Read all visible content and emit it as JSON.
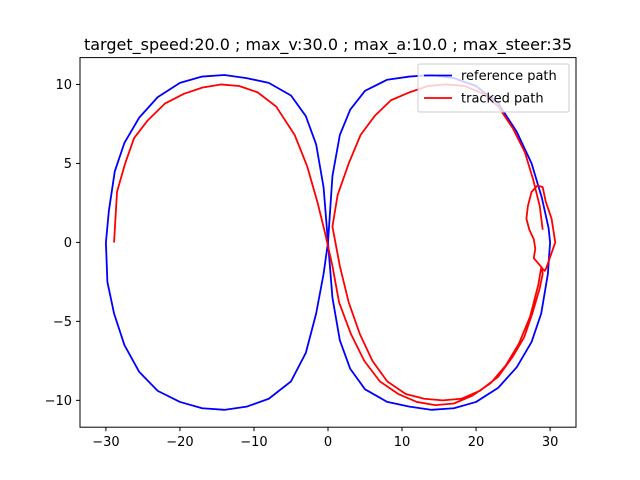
{
  "chart_data": {
    "type": "line",
    "title": "target_speed:20.0 ; max_v:30.0 ; max_a:10.0 ; max_steer:35",
    "xlabel": "",
    "ylabel": "",
    "xlim": [
      -33.5,
      33.5
    ],
    "ylim": [
      -11.7,
      11.7
    ],
    "xticks": [
      -30,
      -20,
      -10,
      0,
      10,
      20,
      30
    ],
    "yticks": [
      -10,
      -5,
      0,
      5,
      10
    ],
    "xtick_labels": [
      "−30",
      "−20",
      "−10",
      "0",
      "10",
      "20",
      "30"
    ],
    "ytick_labels": [
      "−10",
      "−5",
      "0",
      "5",
      "10"
    ],
    "grid": false,
    "legend_position": "top-right",
    "series": [
      {
        "name": "reference path",
        "color": "#0000ff",
        "points": [
          [
            0.0,
            0.0
          ],
          [
            0.6,
            4.2
          ],
          [
            1.6,
            6.8
          ],
          [
            3.0,
            8.4
          ],
          [
            5.0,
            9.6
          ],
          [
            8.0,
            10.3
          ],
          [
            11.0,
            10.5
          ],
          [
            14.0,
            10.6
          ],
          [
            17.0,
            10.4
          ],
          [
            20.0,
            9.9
          ],
          [
            23.0,
            8.8
          ],
          [
            25.5,
            7.0
          ],
          [
            27.5,
            5.0
          ],
          [
            28.9,
            2.8
          ],
          [
            29.8,
            0.9
          ],
          [
            30.0,
            0.0
          ],
          [
            29.7,
            -2.0
          ],
          [
            28.8,
            -4.5
          ],
          [
            27.5,
            -6.3
          ],
          [
            25.5,
            -7.9
          ],
          [
            23.0,
            -9.2
          ],
          [
            20.0,
            -10.1
          ],
          [
            17.0,
            -10.5
          ],
          [
            14.0,
            -10.6
          ],
          [
            11.0,
            -10.4
          ],
          [
            8.0,
            -10.1
          ],
          [
            5.0,
            -9.3
          ],
          [
            3.0,
            -8.0
          ],
          [
            1.6,
            -6.2
          ],
          [
            0.6,
            -3.5
          ],
          [
            0.0,
            0.0
          ],
          [
            -0.6,
            3.5
          ],
          [
            -1.6,
            6.2
          ],
          [
            -3.0,
            8.0
          ],
          [
            -5.0,
            9.3
          ],
          [
            -8.0,
            10.1
          ],
          [
            -11.0,
            10.4
          ],
          [
            -14.0,
            10.6
          ],
          [
            -17.0,
            10.5
          ],
          [
            -20.0,
            10.1
          ],
          [
            -23.0,
            9.2
          ],
          [
            -25.5,
            7.9
          ],
          [
            -27.5,
            6.3
          ],
          [
            -28.8,
            4.5
          ],
          [
            -29.6,
            2.0
          ],
          [
            -30.0,
            0.0
          ],
          [
            -29.8,
            -2.5
          ],
          [
            -28.9,
            -4.5
          ],
          [
            -27.5,
            -6.5
          ],
          [
            -25.5,
            -8.2
          ],
          [
            -23.0,
            -9.4
          ],
          [
            -20.0,
            -10.1
          ],
          [
            -17.0,
            -10.5
          ],
          [
            -14.0,
            -10.6
          ],
          [
            -11.0,
            -10.4
          ],
          [
            -8.0,
            -9.9
          ],
          [
            -5.0,
            -8.8
          ],
          [
            -3.0,
            -7.0
          ],
          [
            -1.6,
            -4.5
          ],
          [
            -0.6,
            -2.0
          ],
          [
            0.0,
            0.0
          ]
        ]
      },
      {
        "name": "tracked path",
        "color": "#ff0000",
        "points": [
          [
            -28.9,
            0.0
          ],
          [
            -28.5,
            3.2
          ],
          [
            -27.4,
            5.0
          ],
          [
            -26.2,
            6.6
          ],
          [
            -24.4,
            7.7
          ],
          [
            -22.0,
            8.8
          ],
          [
            -19.5,
            9.4
          ],
          [
            -17.0,
            9.8
          ],
          [
            -14.5,
            10.0
          ],
          [
            -12.0,
            9.9
          ],
          [
            -9.5,
            9.5
          ],
          [
            -7.0,
            8.6
          ],
          [
            -4.5,
            6.8
          ],
          [
            -2.8,
            4.8
          ],
          [
            -1.4,
            2.5
          ],
          [
            -0.4,
            0.6
          ],
          [
            0.6,
            -1.5
          ],
          [
            1.5,
            -3.8
          ],
          [
            3.1,
            -5.8
          ],
          [
            4.9,
            -7.5
          ],
          [
            7.0,
            -8.8
          ],
          [
            9.5,
            -9.6
          ],
          [
            12.0,
            -10.1
          ],
          [
            14.5,
            -10.3
          ],
          [
            17.0,
            -10.2
          ],
          [
            19.5,
            -9.7
          ],
          [
            22.0,
            -8.9
          ],
          [
            24.0,
            -7.8
          ],
          [
            25.8,
            -6.4
          ],
          [
            27.3,
            -4.7
          ],
          [
            28.4,
            -2.7
          ],
          [
            28.8,
            -1.6
          ],
          [
            29.3,
            -1.8
          ],
          [
            29.5,
            -1.6
          ],
          [
            30.7,
            0.0
          ],
          [
            30.2,
            1.5
          ],
          [
            29.4,
            2.6
          ],
          [
            29.0,
            3.5
          ],
          [
            28.3,
            3.6
          ],
          [
            27.5,
            3.2
          ],
          [
            27.0,
            2.3
          ],
          [
            26.8,
            1.5
          ],
          [
            27.2,
            0.8
          ],
          [
            27.8,
            0.2
          ],
          [
            28.0,
            -0.4
          ],
          [
            27.8,
            -1.0
          ],
          [
            28.9,
            -1.6
          ],
          [
            29.0,
            -2.0
          ],
          [
            28.6,
            -2.9
          ],
          [
            27.6,
            -4.5
          ],
          [
            26.5,
            -6.0
          ],
          [
            25.0,
            -7.2
          ],
          [
            23.0,
            -8.5
          ],
          [
            20.5,
            -9.4
          ],
          [
            18.0,
            -9.9
          ],
          [
            15.5,
            -10.0
          ],
          [
            13.0,
            -9.9
          ],
          [
            10.5,
            -9.6
          ],
          [
            8.0,
            -8.8
          ],
          [
            6.0,
            -7.5
          ],
          [
            4.3,
            -5.8
          ],
          [
            2.8,
            -3.8
          ],
          [
            1.6,
            -1.5
          ],
          [
            0.6,
            1.0
          ],
          [
            1.3,
            3.0
          ],
          [
            2.8,
            5.0
          ],
          [
            4.4,
            6.8
          ],
          [
            6.3,
            8.0
          ],
          [
            8.5,
            9.0
          ],
          [
            11.0,
            9.5
          ],
          [
            13.5,
            9.9
          ],
          [
            16.0,
            10.0
          ],
          [
            18.5,
            9.9
          ],
          [
            21.0,
            9.4
          ],
          [
            23.0,
            8.6
          ],
          [
            25.0,
            7.2
          ],
          [
            26.6,
            5.7
          ],
          [
            27.7,
            4.0
          ],
          [
            28.6,
            2.3
          ],
          [
            29.0,
            0.8
          ]
        ]
      }
    ]
  }
}
